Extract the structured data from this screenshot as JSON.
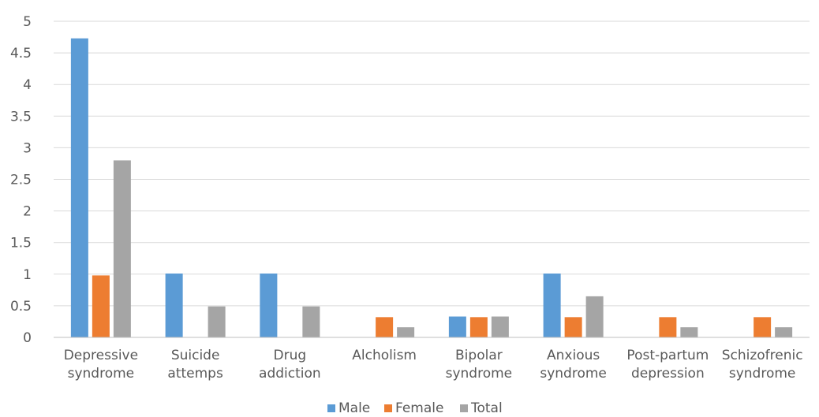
{
  "chart_data": {
    "type": "bar",
    "categories": [
      [
        "Depressive",
        "syndrome"
      ],
      [
        "Suicide",
        "attemps"
      ],
      [
        "Drug",
        "addiction"
      ],
      [
        "Alcholism"
      ],
      [
        "Bipolar",
        "syndrome"
      ],
      [
        "Anxious",
        "syndrome"
      ],
      [
        "Post-partum",
        "depression"
      ],
      [
        "Schizofrenic",
        "syndrome"
      ]
    ],
    "series": [
      {
        "name": "Male",
        "color": "#5b9bd5",
        "values": [
          4.73,
          1.01,
          1.01,
          0,
          0.33,
          1.01,
          0,
          0
        ]
      },
      {
        "name": "Female",
        "color": "#ed7d31",
        "values": [
          0.98,
          0,
          0,
          0.32,
          0.32,
          0.32,
          0.32,
          0.32
        ]
      },
      {
        "name": "Total",
        "color": "#a5a5a5",
        "values": [
          2.8,
          0.49,
          0.49,
          0.16,
          0.33,
          0.65,
          0.16,
          0.16
        ]
      }
    ],
    "yticks": [
      "0",
      "0.5",
      "1",
      "1.5",
      "2",
      "2.5",
      "3",
      "3.5",
      "4",
      "4.5",
      "5"
    ],
    "ylim": [
      0,
      5
    ],
    "grid": true,
    "legend": "bottom",
    "gridColor": "#d9d9d9",
    "axisColor": "#bfbfbf"
  }
}
